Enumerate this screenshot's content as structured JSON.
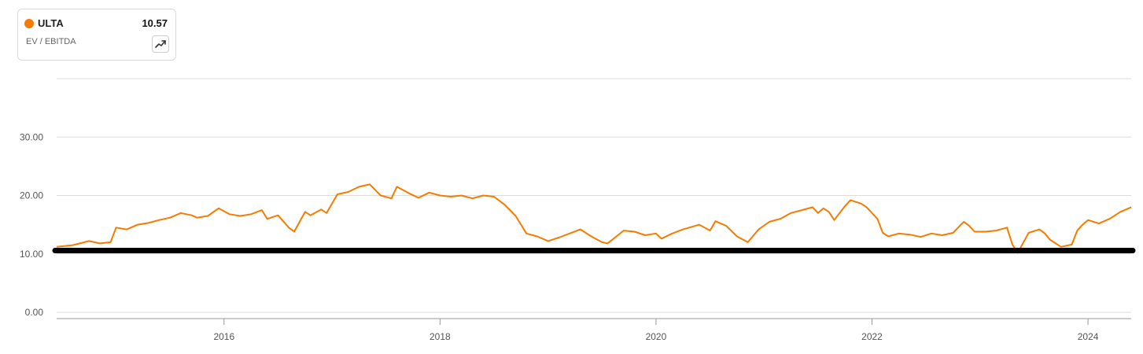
{
  "legend": {
    "ticker": "ULTA",
    "value": "10.57",
    "metric": "EV / EBITDA",
    "series_color": "#f57c00",
    "trend_icon": "trending-up-icon"
  },
  "colors": {
    "series": "#f57c00",
    "reference_line": "#000000",
    "grid": "#dddddd",
    "axis": "#999999"
  },
  "chart_data": {
    "type": "line",
    "title": "",
    "xlabel": "",
    "ylabel": "",
    "y_tick_labels": [
      "0.00",
      "10.00",
      "20.00",
      "30.00"
    ],
    "x_tick_labels": [
      "2016",
      "2018",
      "2020",
      "2022",
      "2024"
    ],
    "x_ticks": [
      2016,
      2018,
      2020,
      2022,
      2024
    ],
    "y_ticks": [
      0,
      10,
      20,
      30
    ],
    "xlim": [
      2014.45,
      2024.4
    ],
    "ylim": [
      0,
      40
    ],
    "grid": true,
    "reference_line": {
      "y": 10.57
    },
    "series": [
      {
        "name": "ULTA",
        "points": [
          [
            2014.45,
            11.2
          ],
          [
            2014.6,
            11.5
          ],
          [
            2014.75,
            12.2
          ],
          [
            2014.85,
            11.8
          ],
          [
            2014.95,
            12.0
          ],
          [
            2015.0,
            14.5
          ],
          [
            2015.1,
            14.2
          ],
          [
            2015.2,
            15.0
          ],
          [
            2015.3,
            15.3
          ],
          [
            2015.4,
            15.8
          ],
          [
            2015.5,
            16.2
          ],
          [
            2015.6,
            17.0
          ],
          [
            2015.7,
            16.6
          ],
          [
            2015.75,
            16.2
          ],
          [
            2015.85,
            16.5
          ],
          [
            2015.95,
            17.8
          ],
          [
            2016.05,
            16.8
          ],
          [
            2016.15,
            16.5
          ],
          [
            2016.25,
            16.8
          ],
          [
            2016.35,
            17.5
          ],
          [
            2016.4,
            16.0
          ],
          [
            2016.5,
            16.6
          ],
          [
            2016.6,
            14.5
          ],
          [
            2016.65,
            13.8
          ],
          [
            2016.75,
            17.2
          ],
          [
            2016.8,
            16.6
          ],
          [
            2016.9,
            17.6
          ],
          [
            2016.95,
            17.0
          ],
          [
            2017.05,
            20.2
          ],
          [
            2017.15,
            20.6
          ],
          [
            2017.25,
            21.5
          ],
          [
            2017.35,
            21.9
          ],
          [
            2017.45,
            20.0
          ],
          [
            2017.55,
            19.5
          ],
          [
            2017.6,
            21.5
          ],
          [
            2017.7,
            20.5
          ],
          [
            2017.8,
            19.6
          ],
          [
            2017.9,
            20.5
          ],
          [
            2018.0,
            20.0
          ],
          [
            2018.1,
            19.8
          ],
          [
            2018.2,
            20.0
          ],
          [
            2018.3,
            19.5
          ],
          [
            2018.4,
            20.0
          ],
          [
            2018.5,
            19.8
          ],
          [
            2018.6,
            18.4
          ],
          [
            2018.7,
            16.5
          ],
          [
            2018.8,
            13.5
          ],
          [
            2018.9,
            13.0
          ],
          [
            2019.0,
            12.2
          ],
          [
            2019.1,
            12.8
          ],
          [
            2019.2,
            13.5
          ],
          [
            2019.3,
            14.2
          ],
          [
            2019.4,
            13.0
          ],
          [
            2019.5,
            12.0
          ],
          [
            2019.55,
            11.8
          ],
          [
            2019.6,
            12.5
          ],
          [
            2019.7,
            14.0
          ],
          [
            2019.8,
            13.8
          ],
          [
            2019.9,
            13.2
          ],
          [
            2020.0,
            13.5
          ],
          [
            2020.05,
            12.6
          ],
          [
            2020.15,
            13.5
          ],
          [
            2020.25,
            14.2
          ],
          [
            2020.4,
            15.0
          ],
          [
            2020.5,
            14.0
          ],
          [
            2020.55,
            15.6
          ],
          [
            2020.65,
            14.8
          ],
          [
            2020.75,
            13.0
          ],
          [
            2020.85,
            12.0
          ],
          [
            2020.95,
            14.2
          ],
          [
            2021.05,
            15.5
          ],
          [
            2021.15,
            16.0
          ],
          [
            2021.25,
            17.0
          ],
          [
            2021.35,
            17.5
          ],
          [
            2021.45,
            18.0
          ],
          [
            2021.5,
            17.0
          ],
          [
            2021.55,
            17.8
          ],
          [
            2021.6,
            17.2
          ],
          [
            2021.65,
            15.8
          ],
          [
            2021.75,
            18.2
          ],
          [
            2021.8,
            19.2
          ],
          [
            2021.9,
            18.6
          ],
          [
            2021.95,
            18.0
          ],
          [
            2022.05,
            16.0
          ],
          [
            2022.1,
            13.6
          ],
          [
            2022.15,
            13.0
          ],
          [
            2022.25,
            13.5
          ],
          [
            2022.35,
            13.3
          ],
          [
            2022.45,
            12.9
          ],
          [
            2022.55,
            13.5
          ],
          [
            2022.65,
            13.2
          ],
          [
            2022.75,
            13.6
          ],
          [
            2022.85,
            15.5
          ],
          [
            2022.9,
            14.8
          ],
          [
            2022.95,
            13.8
          ],
          [
            2023.05,
            13.8
          ],
          [
            2023.15,
            14.0
          ],
          [
            2023.25,
            14.5
          ],
          [
            2023.3,
            11.6
          ],
          [
            2023.35,
            10.2
          ],
          [
            2023.45,
            13.6
          ],
          [
            2023.55,
            14.2
          ],
          [
            2023.6,
            13.5
          ],
          [
            2023.65,
            12.4
          ],
          [
            2023.75,
            11.2
          ],
          [
            2023.85,
            11.6
          ],
          [
            2023.9,
            14.0
          ],
          [
            2023.95,
            15.0
          ],
          [
            2024.0,
            15.8
          ],
          [
            2024.1,
            15.2
          ],
          [
            2024.2,
            16.0
          ],
          [
            2024.3,
            17.2
          ],
          [
            2024.4,
            18.0
          ]
        ]
      }
    ]
  }
}
